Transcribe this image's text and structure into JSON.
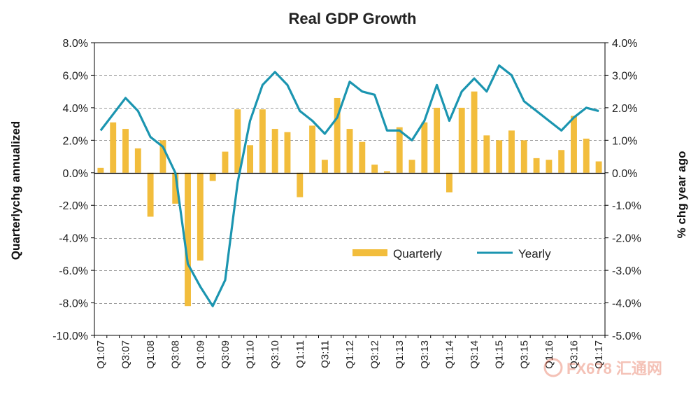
{
  "chart_data": {
    "type": "bar+line",
    "title": "Real GDP Growth",
    "ylabel_left": "Quarterlychg annualized",
    "ylabel_right": "% chg year ago",
    "y_left": {
      "min": -10,
      "max": 8,
      "step": 2,
      "format": "percent1"
    },
    "y_right": {
      "min": -5,
      "max": 4,
      "step": 1,
      "format": "percent1"
    },
    "y_left_ticks": [
      "8.0%",
      "6.0%",
      "4.0%",
      "2.0%",
      "0.0%",
      "-2.0%",
      "-4.0%",
      "-6.0%",
      "-8.0%",
      "-10.0%"
    ],
    "y_right_ticks": [
      "4.0%",
      "3.0%",
      "2.0%",
      "1.0%",
      "0.0%",
      "-1.0%",
      "-2.0%",
      "-3.0%",
      "-4.0%",
      "-5.0%"
    ],
    "x_labels": [
      "Q1:07",
      "Q3:07",
      "Q1:08",
      "Q3:08",
      "Q1:09",
      "Q3:09",
      "Q1:10",
      "Q3:10",
      "Q1:11",
      "Q3:11",
      "Q1:12",
      "Q3:12",
      "Q1:13",
      "Q3:13",
      "Q1:14",
      "Q3:14",
      "Q1:15",
      "Q3:15",
      "Q1:16",
      "Q3:16",
      "Q1:17"
    ],
    "periods": [
      "Q1:07",
      "Q2:07",
      "Q3:07",
      "Q4:07",
      "Q1:08",
      "Q2:08",
      "Q3:08",
      "Q4:08",
      "Q1:09",
      "Q2:09",
      "Q3:09",
      "Q4:09",
      "Q1:10",
      "Q2:10",
      "Q3:10",
      "Q4:10",
      "Q1:11",
      "Q2:11",
      "Q3:11",
      "Q4:11",
      "Q1:12",
      "Q2:12",
      "Q3:12",
      "Q4:12",
      "Q1:13",
      "Q2:13",
      "Q3:13",
      "Q4:13",
      "Q1:14",
      "Q2:14",
      "Q3:14",
      "Q4:14",
      "Q1:15",
      "Q2:15",
      "Q3:15",
      "Q4:15",
      "Q1:16",
      "Q2:16",
      "Q3:16",
      "Q4:16",
      "Q1:17"
    ],
    "series": [
      {
        "name": "Quarterly",
        "type": "bar",
        "axis": "left",
        "color": "#f2bd3c",
        "values": [
          0.3,
          3.1,
          2.7,
          1.5,
          -2.7,
          2.0,
          -1.9,
          -8.2,
          -5.4,
          -0.5,
          1.3,
          3.9,
          1.7,
          3.9,
          2.7,
          2.5,
          -1.5,
          2.9,
          0.8,
          4.6,
          2.7,
          1.9,
          0.5,
          0.1,
          2.8,
          0.8,
          3.1,
          4.0,
          -1.2,
          4.0,
          5.0,
          2.3,
          2.0,
          2.6,
          2.0,
          0.9,
          0.8,
          1.4,
          3.5,
          2.1,
          0.7
        ]
      },
      {
        "name": "Yearly",
        "type": "line",
        "axis": "right",
        "color": "#1b95b0",
        "values": [
          1.3,
          1.8,
          2.3,
          1.9,
          1.1,
          0.8,
          0.0,
          -2.8,
          -3.5,
          -4.1,
          -3.3,
          -0.3,
          1.6,
          2.7,
          3.1,
          2.7,
          1.9,
          1.6,
          1.2,
          1.7,
          2.8,
          2.5,
          2.4,
          1.3,
          1.3,
          1.0,
          1.6,
          2.7,
          1.6,
          2.5,
          2.9,
          2.5,
          3.3,
          3.0,
          2.2,
          1.9,
          1.6,
          1.3,
          1.7,
          2.0,
          1.9
        ]
      }
    ],
    "legend": {
      "placement": "lower-right inside plot",
      "items": [
        "Quarterly",
        "Yearly"
      ]
    },
    "gridlines": "horizontal dashed",
    "watermark_text": "FX678 汇通网"
  }
}
